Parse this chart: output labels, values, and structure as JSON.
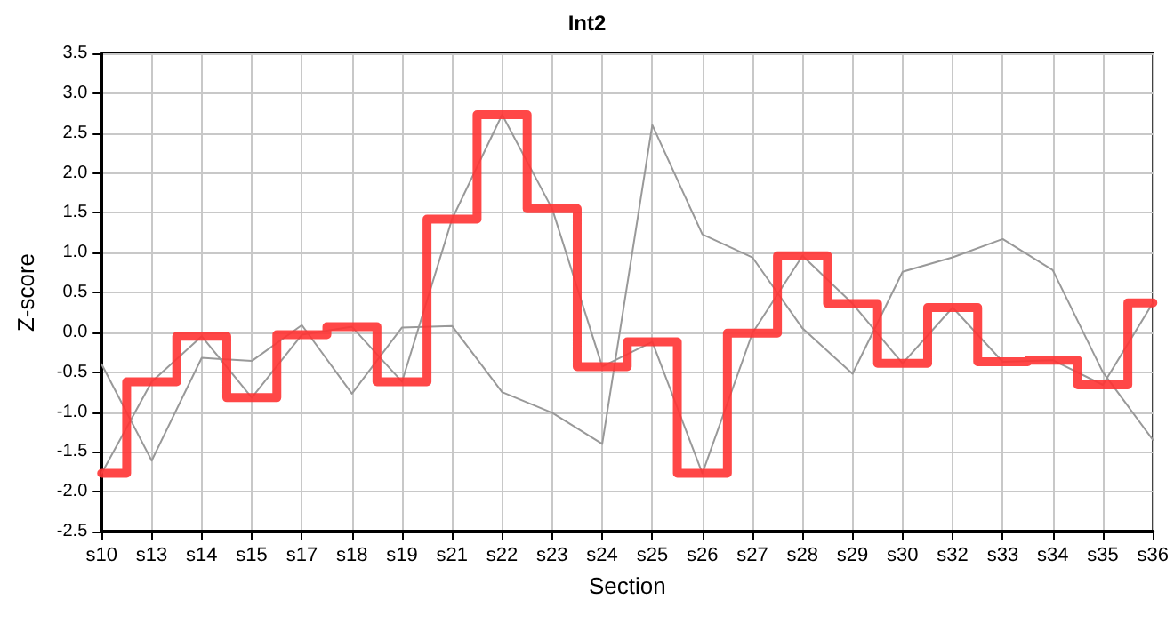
{
  "chart_data": {
    "type": "line",
    "title": "Int2",
    "xlabel": "Section",
    "ylabel": "Z-score",
    "categories": [
      "s10",
      "s13",
      "s14",
      "s15",
      "s17",
      "s18",
      "s19",
      "s21",
      "s22",
      "s23",
      "s24",
      "s25",
      "s26",
      "s27",
      "s28",
      "s29",
      "s30",
      "s32",
      "s33",
      "s34",
      "s35",
      "s36"
    ],
    "series": [
      {
        "color": "#999999",
        "values": [
          -1.77,
          -0.62,
          -0.05,
          -0.82,
          -0.03,
          0.07,
          -0.62,
          1.42,
          2.73,
          1.55,
          -0.43,
          -0.12,
          -1.77,
          -0.01,
          0.96,
          0.36,
          -0.39,
          0.31,
          -0.37,
          -0.35,
          -0.66,
          0.37
        ]
      },
      {
        "color": "#999999",
        "values": [
          -0.4,
          -1.61,
          -0.32,
          -0.36,
          0.09,
          -0.77,
          0.06,
          0.08,
          -0.75,
          -1.01,
          -1.4,
          2.6,
          1.23,
          0.94,
          0.05,
          -0.52,
          0.76,
          0.94,
          1.17,
          0.78,
          -0.5,
          -1.35
        ]
      },
      {
        "type": "step",
        "color": "#ff3333",
        "values": [
          -1.77,
          -0.62,
          -0.05,
          -0.82,
          -0.03,
          0.07,
          -0.62,
          1.42,
          2.73,
          1.55,
          -0.43,
          -0.12,
          -1.77,
          -0.01,
          0.96,
          0.36,
          -0.39,
          0.31,
          -0.37,
          -0.35,
          -0.66,
          0.37
        ]
      }
    ],
    "ylim": [
      -2.5,
      3.5
    ],
    "yticks": [
      {
        "value": -2.5,
        "label": "-2.5"
      },
      {
        "value": -2,
        "label": "-2.0"
      },
      {
        "value": -1.5,
        "label": "-1.5"
      },
      {
        "value": -1,
        "label": "-1.0"
      },
      {
        "value": -0.5,
        "label": "-0.5"
      },
      {
        "value": 0,
        "label": "0.0"
      },
      {
        "value": 0.5,
        "label": "0.5"
      },
      {
        "value": 1,
        "label": "1.0"
      },
      {
        "value": 1.5,
        "label": "1.5"
      },
      {
        "value": 2,
        "label": "2.0"
      },
      {
        "value": 2.5,
        "label": "2.5"
      },
      {
        "value": 3,
        "label": "3.0"
      },
      {
        "value": 3.5,
        "label": "3.5"
      }
    ],
    "grid": true,
    "marker": "none",
    "line_style": "solid"
  }
}
